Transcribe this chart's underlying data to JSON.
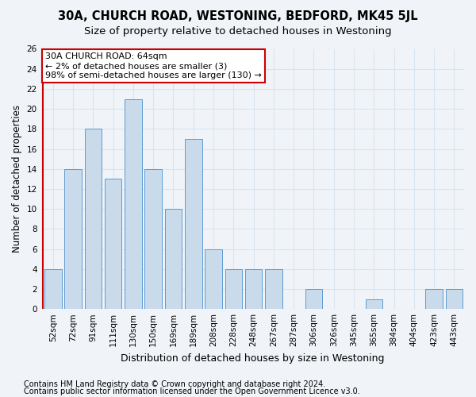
{
  "title1": "30A, CHURCH ROAD, WESTONING, BEDFORD, MK45 5JL",
  "title2": "Size of property relative to detached houses in Westoning",
  "xlabel": "Distribution of detached houses by size in Westoning",
  "ylabel": "Number of detached properties",
  "categories": [
    "52sqm",
    "72sqm",
    "91sqm",
    "111sqm",
    "130sqm",
    "150sqm",
    "169sqm",
    "189sqm",
    "208sqm",
    "228sqm",
    "248sqm",
    "267sqm",
    "287sqm",
    "306sqm",
    "326sqm",
    "345sqm",
    "365sqm",
    "384sqm",
    "404sqm",
    "423sqm",
    "443sqm"
  ],
  "values": [
    4,
    14,
    18,
    13,
    21,
    14,
    10,
    17,
    6,
    4,
    4,
    4,
    0,
    2,
    0,
    0,
    1,
    0,
    0,
    2,
    2
  ],
  "bar_color": "#c9daea",
  "bar_edge_color": "#5b9bd5",
  "highlight_color": "#cc0000",
  "annotation_line1": "30A CHURCH ROAD: 64sqm",
  "annotation_line2": "← 2% of detached houses are smaller (3)",
  "annotation_line3": "98% of semi-detached houses are larger (130) →",
  "annotation_box_color": "#ffffff",
  "annotation_box_edge_color": "#cc0000",
  "ylim": [
    0,
    26
  ],
  "yticks": [
    0,
    2,
    4,
    6,
    8,
    10,
    12,
    14,
    16,
    18,
    20,
    22,
    24,
    26
  ],
  "footer1": "Contains HM Land Registry data © Crown copyright and database right 2024.",
  "footer2": "Contains public sector information licensed under the Open Government Licence v3.0.",
  "bg_color": "#f0f4f8",
  "plot_bg_color": "#f0f4f8",
  "grid_color": "#d8e4f0",
  "title1_fontsize": 10.5,
  "title2_fontsize": 9.5,
  "xlabel_fontsize": 9,
  "ylabel_fontsize": 8.5,
  "tick_fontsize": 7.5,
  "annotation_fontsize": 8,
  "footer_fontsize": 7
}
